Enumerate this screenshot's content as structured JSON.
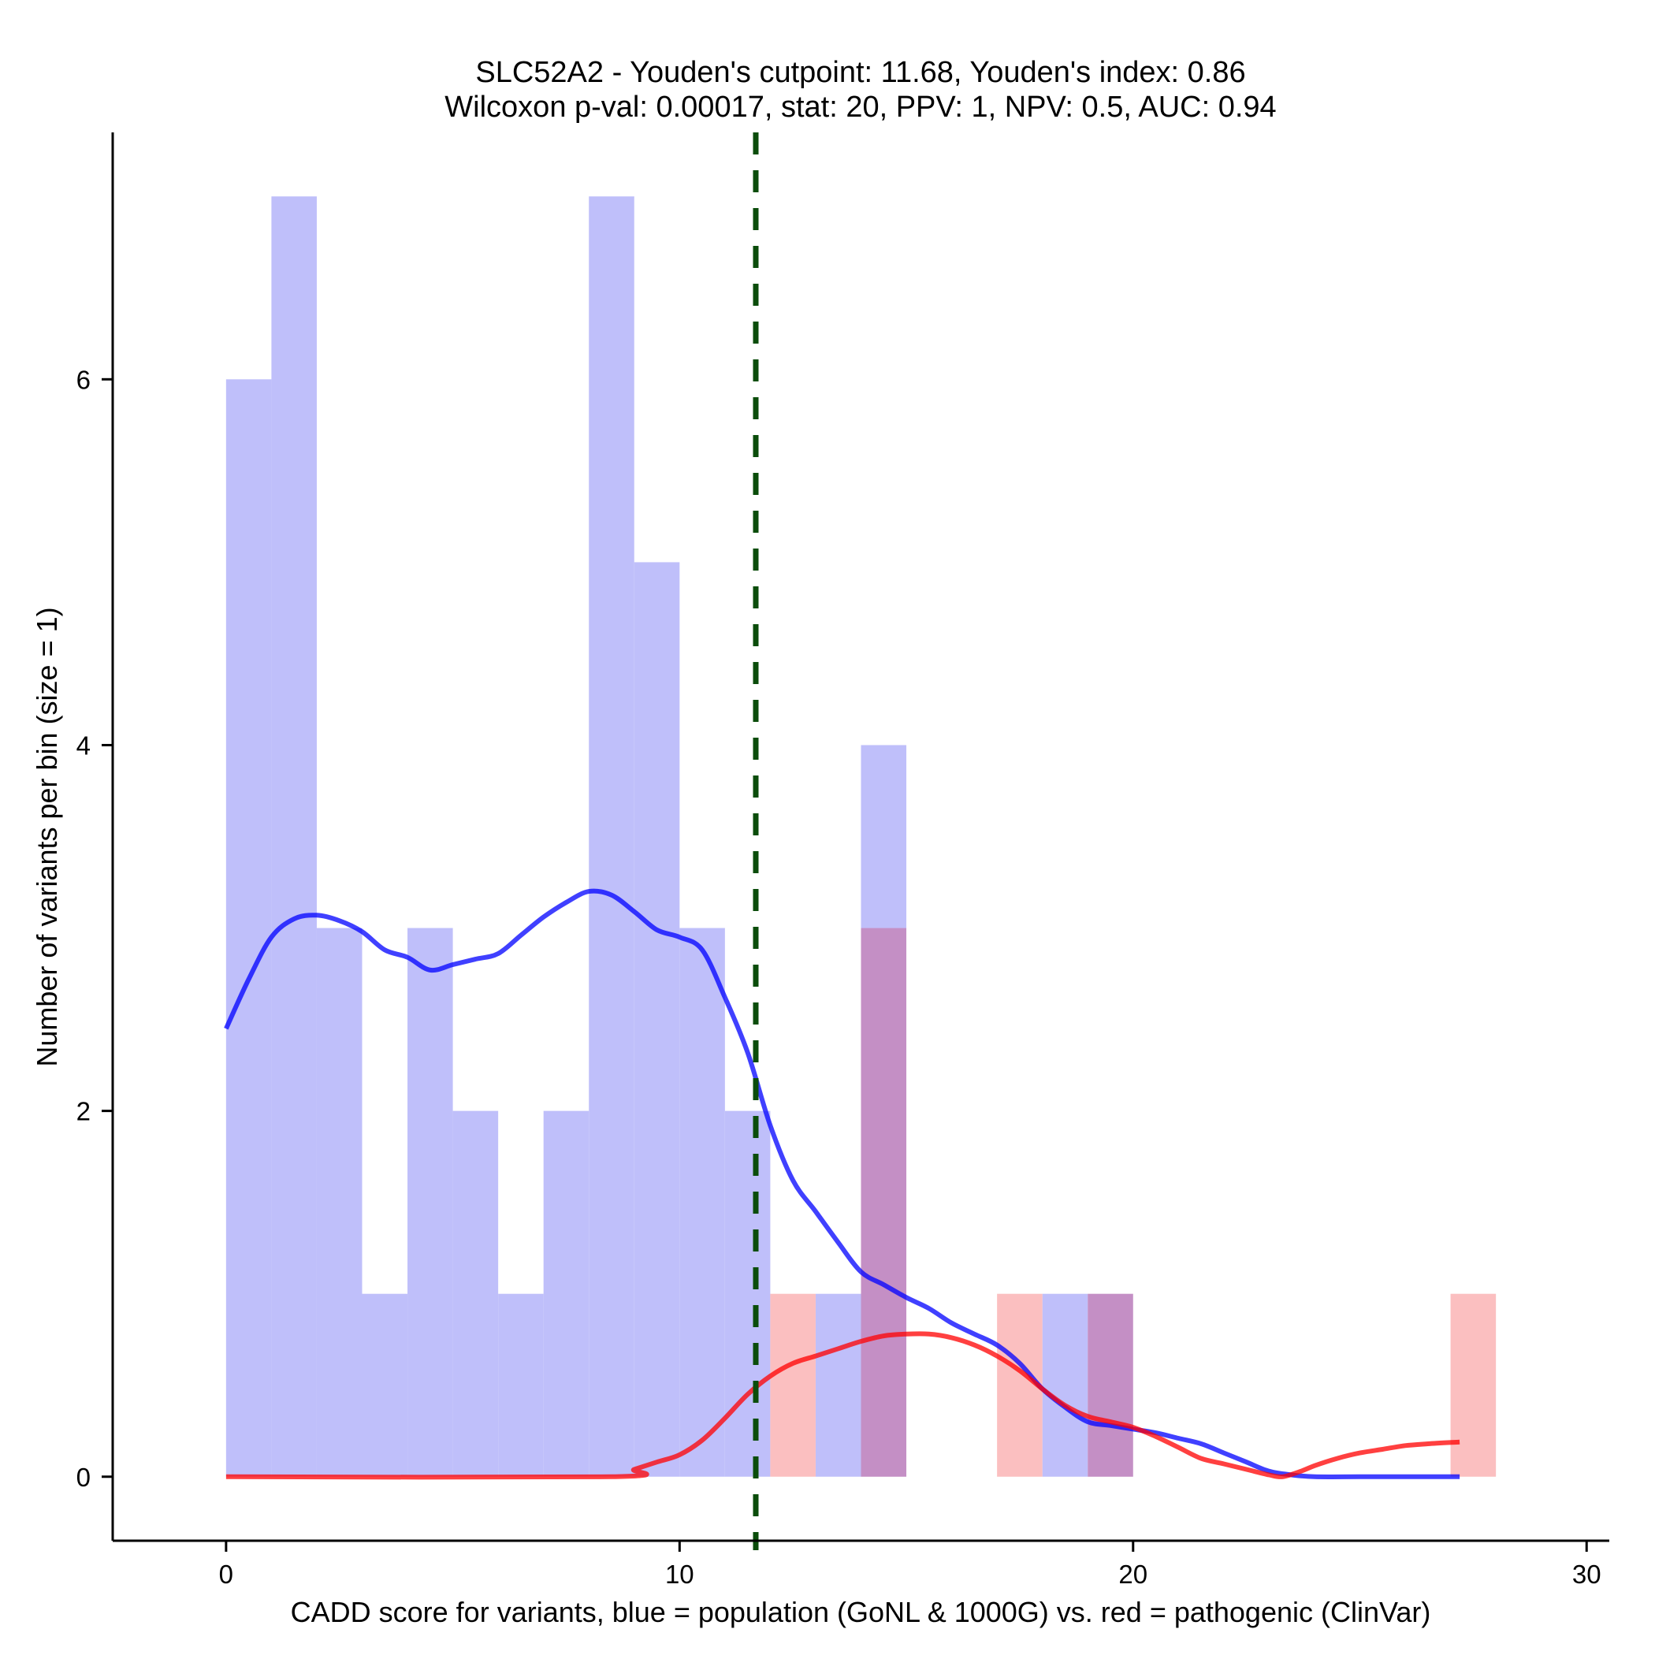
{
  "chart_data": {
    "type": "bar",
    "title_line1": "SLC52A2 - Youden's cutpoint: 11.68, Youden's index: 0.86",
    "title_line2": "Wilcoxon p-val: 0.00017, stat: 20, PPV: 1, NPV: 0.5, AUC: 0.94",
    "xlabel": "CADD score for variants, blue = population (GoNL & 1000G) vs. red = pathogenic (ClinVar)",
    "ylabel": "Number of variants per bin (size = 1)",
    "xlim": [
      -2.5,
      30.5
    ],
    "ylim": [
      -0.35,
      7.35
    ],
    "xticks": [
      0,
      10,
      20,
      30
    ],
    "xtick_labels": [
      "0",
      "10",
      "20",
      "30"
    ],
    "yticks": [
      0,
      2,
      4,
      6
    ],
    "ytick_labels": [
      "0",
      "2",
      "4",
      "6"
    ],
    "bin_width": 1,
    "cutpoint": 11.68,
    "series": [
      {
        "name": "population (GoNL & 1000G)",
        "color": "#0000ff",
        "bar_color": "#bfbffa",
        "bins": [
          {
            "x0": 0,
            "count": 6
          },
          {
            "x0": 1,
            "count": 7
          },
          {
            "x0": 2,
            "count": 3
          },
          {
            "x0": 3,
            "count": 1
          },
          {
            "x0": 4,
            "count": 3
          },
          {
            "x0": 5,
            "count": 2
          },
          {
            "x0": 6,
            "count": 1
          },
          {
            "x0": 7,
            "count": 2
          },
          {
            "x0": 8,
            "count": 7
          },
          {
            "x0": 9,
            "count": 5
          },
          {
            "x0": 10,
            "count": 3
          },
          {
            "x0": 11,
            "count": 2
          },
          {
            "x0": 13,
            "count": 1
          },
          {
            "x0": 14,
            "count": 4
          },
          {
            "x0": 18,
            "count": 1
          },
          {
            "x0": 19,
            "count": 1
          }
        ],
        "density_x": [
          0,
          0.5,
          1,
          1.5,
          2,
          2.5,
          3,
          3.5,
          4,
          4.5,
          5,
          5.5,
          6,
          6.5,
          7,
          7.5,
          8,
          8.5,
          9,
          9.5,
          10,
          10.5,
          11,
          11.5,
          12,
          12.5,
          13,
          13.5,
          14,
          14.5,
          15,
          15.5,
          16,
          16.5,
          17,
          17.5,
          18,
          18.5,
          19,
          19.5,
          20,
          20.5,
          21,
          21.5,
          22,
          22.5,
          23,
          23.5,
          24,
          25,
          26,
          27.2
        ],
        "density_y": [
          2.45,
          2.72,
          2.95,
          3.05,
          3.07,
          3.04,
          2.98,
          2.88,
          2.84,
          2.77,
          2.8,
          2.83,
          2.86,
          2.96,
          3.06,
          3.14,
          3.2,
          3.18,
          3.09,
          2.99,
          2.95,
          2.88,
          2.62,
          2.32,
          1.92,
          1.62,
          1.45,
          1.28,
          1.12,
          1.05,
          0.98,
          0.92,
          0.84,
          0.78,
          0.72,
          0.62,
          0.48,
          0.38,
          0.3,
          0.28,
          0.26,
          0.24,
          0.21,
          0.18,
          0.13,
          0.08,
          0.03,
          0.01,
          0.0,
          0.0,
          0.0,
          0.0
        ]
      },
      {
        "name": "pathogenic (ClinVar)",
        "color": "#ff0000",
        "bar_color": "#fbbfc0",
        "bins": [
          {
            "x0": 12,
            "count": 1
          },
          {
            "x0": 14,
            "count": 3
          },
          {
            "x0": 17,
            "count": 1
          },
          {
            "x0": 19,
            "count": 1
          },
          {
            "x0": 27,
            "count": 1
          }
        ],
        "density_x": [
          0,
          8.5,
          9,
          9.5,
          10,
          10.5,
          11,
          11.5,
          12,
          12.5,
          13,
          13.5,
          14,
          14.5,
          15,
          15.5,
          16,
          16.5,
          17,
          17.5,
          18,
          18.5,
          19,
          19.5,
          20,
          20.5,
          21,
          21.5,
          22,
          22.5,
          23,
          23.3,
          23.7,
          24,
          24.5,
          25,
          25.5,
          26,
          26.5,
          27.2
        ],
        "density_y": [
          0.0,
          0.0,
          0.04,
          0.08,
          0.12,
          0.2,
          0.32,
          0.45,
          0.55,
          0.62,
          0.66,
          0.7,
          0.74,
          0.77,
          0.78,
          0.78,
          0.76,
          0.72,
          0.66,
          0.58,
          0.48,
          0.39,
          0.33,
          0.3,
          0.27,
          0.22,
          0.16,
          0.1,
          0.07,
          0.04,
          0.01,
          0.0,
          0.03,
          0.06,
          0.1,
          0.13,
          0.15,
          0.17,
          0.18,
          0.19
        ]
      }
    ],
    "overlap_color": "#c48fc5",
    "cutpoint_color": "#0b4d0b"
  }
}
